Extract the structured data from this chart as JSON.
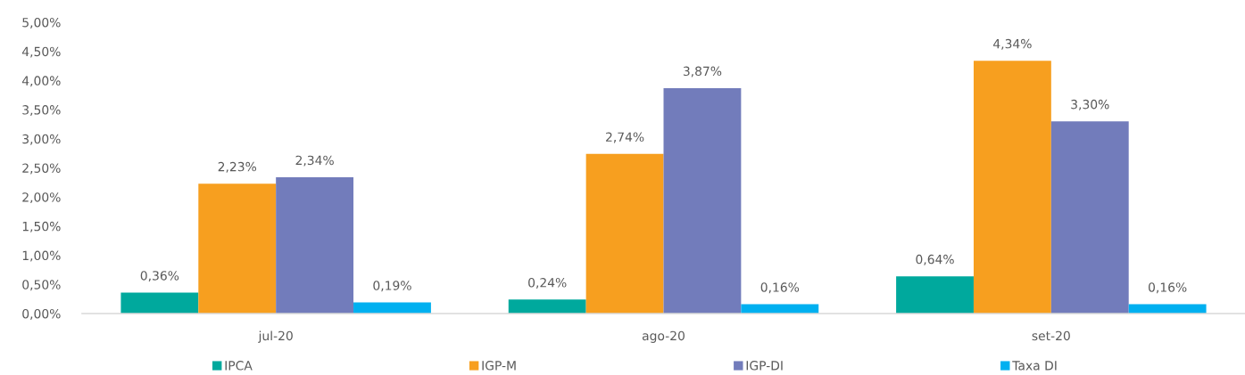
{
  "chart_data": {
    "type": "bar",
    "categories": [
      "jul-20",
      "ago-20",
      "set-20"
    ],
    "series": [
      {
        "name": "IPCA",
        "color": "#00a99d",
        "values": [
          0.36,
          0.24,
          0.64
        ],
        "value_labels": [
          "0,36%",
          "0,24%",
          "0,64%"
        ]
      },
      {
        "name": "IGP-M",
        "color": "#f79f1f",
        "values": [
          2.23,
          2.74,
          4.34
        ],
        "value_labels": [
          "2,23%",
          "2,74%",
          "4,34%"
        ]
      },
      {
        "name": "IGP-DI",
        "color": "#727cbb",
        "values": [
          2.34,
          3.87,
          3.3
        ],
        "value_labels": [
          "2,34%",
          "3,87%",
          "3,30%"
        ]
      },
      {
        "name": "Taxa DI",
        "color": "#00b0f0",
        "values": [
          0.19,
          0.16,
          0.16
        ],
        "value_labels": [
          "0,19%",
          "0,16%",
          "0,16%"
        ]
      }
    ],
    "ylim": [
      0,
      5
    ],
    "yticks": [
      {
        "value": 0,
        "label": "0,00%"
      },
      {
        "value": 0.5,
        "label": "0,50%"
      },
      {
        "value": 1,
        "label": "1,00%"
      },
      {
        "value": 1.5,
        "label": "1,50%"
      },
      {
        "value": 2,
        "label": "2,00%"
      },
      {
        "value": 2.5,
        "label": "2,50%"
      },
      {
        "value": 3,
        "label": "3,00%"
      },
      {
        "value": 3.5,
        "label": "3,50%"
      },
      {
        "value": 4,
        "label": "4,00%"
      },
      {
        "value": 4.5,
        "label": "4,50%"
      },
      {
        "value": 5,
        "label": "5,00%"
      }
    ],
    "legend": "bottom"
  }
}
